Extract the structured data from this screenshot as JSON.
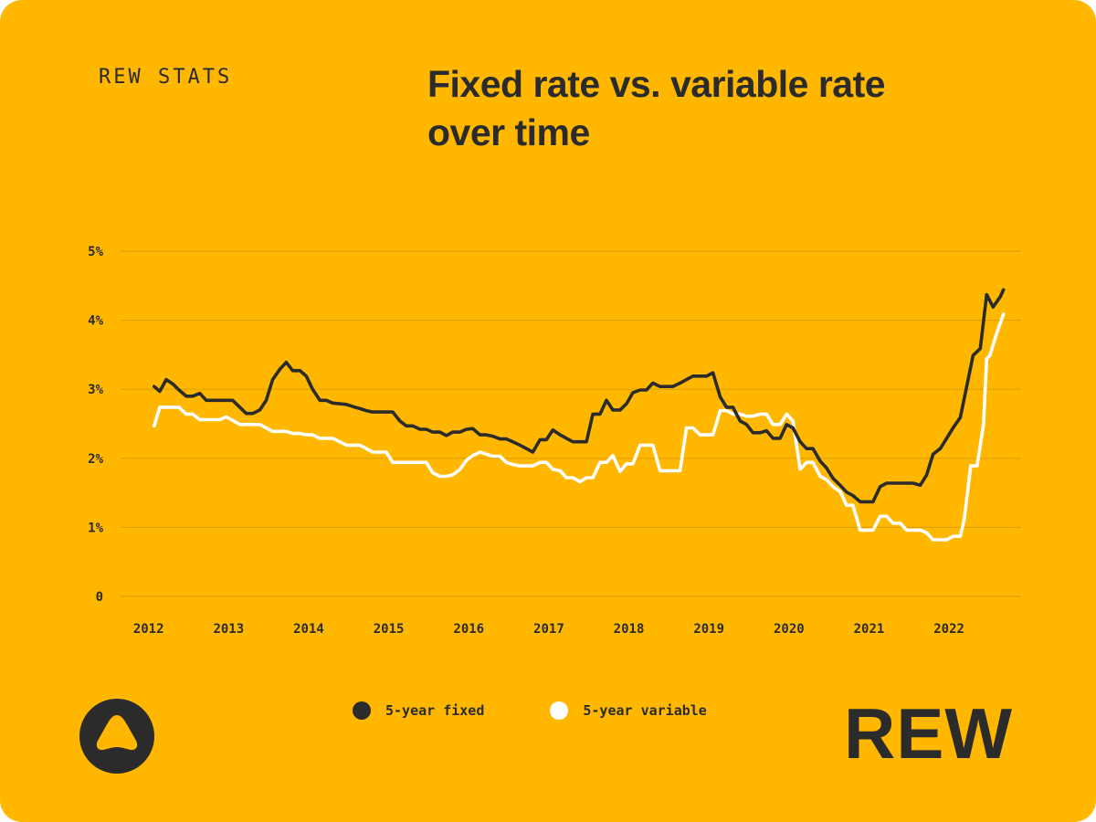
{
  "brand": {
    "eyebrow": "REW STATS",
    "wordmark": "REW"
  },
  "colors": {
    "background": "#FFB700",
    "fixed": "#2B2B2B",
    "variable": "#FFFFFF",
    "grid": "#E0A000",
    "text": "#2B2B2B"
  },
  "chart_data": {
    "type": "line",
    "title": "Fixed rate vs. variable rate over time",
    "xlabel": "",
    "ylabel": "",
    "xlim": [
      2011.7,
      2022.95
    ],
    "ylim": [
      0,
      5
    ],
    "x_ticks": [
      2012,
      2013,
      2014,
      2015,
      2016,
      2017,
      2018,
      2019,
      2020,
      2021,
      2022
    ],
    "y_ticks": [
      {
        "value": 0,
        "label": "0"
      },
      {
        "value": 1,
        "label": "1%"
      },
      {
        "value": 2,
        "label": "2%"
      },
      {
        "value": 3,
        "label": "3%"
      },
      {
        "value": 4,
        "label": "4%"
      },
      {
        "value": 5,
        "label": "5%"
      }
    ],
    "grid": "horizontal",
    "legend_position": "bottom-center",
    "series": [
      {
        "name": "5-year fixed",
        "color": "#2B2B2B",
        "points": [
          [
            2012.12,
            3.04
          ],
          [
            2012.19,
            2.97
          ],
          [
            2012.27,
            3.14
          ],
          [
            2012.35,
            3.08
          ],
          [
            2012.43,
            2.99
          ],
          [
            2012.52,
            2.9
          ],
          [
            2012.6,
            2.9
          ],
          [
            2012.69,
            2.94
          ],
          [
            2012.77,
            2.84
          ],
          [
            2012.85,
            2.84
          ],
          [
            2012.94,
            2.84
          ],
          [
            2013.02,
            2.84
          ],
          [
            2013.1,
            2.84
          ],
          [
            2013.19,
            2.74
          ],
          [
            2013.27,
            2.65
          ],
          [
            2013.35,
            2.65
          ],
          [
            2013.44,
            2.7
          ],
          [
            2013.52,
            2.84
          ],
          [
            2013.6,
            3.14
          ],
          [
            2013.69,
            3.29
          ],
          [
            2013.77,
            3.39
          ],
          [
            2013.85,
            3.27
          ],
          [
            2013.94,
            3.27
          ],
          [
            2014.02,
            3.19
          ],
          [
            2014.1,
            3.0
          ],
          [
            2014.19,
            2.84
          ],
          [
            2014.27,
            2.84
          ],
          [
            2014.35,
            2.8
          ],
          [
            2014.44,
            2.79
          ],
          [
            2014.52,
            2.78
          ],
          [
            2014.6,
            2.75
          ],
          [
            2014.69,
            2.72
          ],
          [
            2014.77,
            2.69
          ],
          [
            2014.85,
            2.67
          ],
          [
            2014.94,
            2.67
          ],
          [
            2015.02,
            2.67
          ],
          [
            2015.1,
            2.67
          ],
          [
            2015.19,
            2.54
          ],
          [
            2015.27,
            2.47
          ],
          [
            2015.35,
            2.47
          ],
          [
            2015.44,
            2.42
          ],
          [
            2015.52,
            2.42
          ],
          [
            2015.6,
            2.38
          ],
          [
            2015.69,
            2.38
          ],
          [
            2015.77,
            2.33
          ],
          [
            2015.85,
            2.38
          ],
          [
            2015.94,
            2.38
          ],
          [
            2016.02,
            2.42
          ],
          [
            2016.1,
            2.43
          ],
          [
            2016.19,
            2.34
          ],
          [
            2016.27,
            2.34
          ],
          [
            2016.35,
            2.32
          ],
          [
            2016.44,
            2.28
          ],
          [
            2016.52,
            2.28
          ],
          [
            2016.6,
            2.24
          ],
          [
            2016.69,
            2.19
          ],
          [
            2016.77,
            2.14
          ],
          [
            2016.85,
            2.09
          ],
          [
            2016.94,
            2.27
          ],
          [
            2017.02,
            2.27
          ],
          [
            2017.1,
            2.41
          ],
          [
            2017.19,
            2.34
          ],
          [
            2017.27,
            2.29
          ],
          [
            2017.35,
            2.24
          ],
          [
            2017.44,
            2.24
          ],
          [
            2017.52,
            2.24
          ],
          [
            2017.6,
            2.64
          ],
          [
            2017.69,
            2.64
          ],
          [
            2017.77,
            2.84
          ],
          [
            2017.85,
            2.7
          ],
          [
            2017.94,
            2.7
          ],
          [
            2018.02,
            2.79
          ],
          [
            2018.1,
            2.95
          ],
          [
            2018.19,
            2.99
          ],
          [
            2018.27,
            2.99
          ],
          [
            2018.35,
            3.09
          ],
          [
            2018.44,
            3.04
          ],
          [
            2018.52,
            3.04
          ],
          [
            2018.6,
            3.04
          ],
          [
            2018.69,
            3.09
          ],
          [
            2018.77,
            3.14
          ],
          [
            2018.85,
            3.19
          ],
          [
            2018.94,
            3.19
          ],
          [
            2019.02,
            3.19
          ],
          [
            2019.1,
            3.24
          ],
          [
            2019.19,
            2.89
          ],
          [
            2019.27,
            2.74
          ],
          [
            2019.35,
            2.74
          ],
          [
            2019.44,
            2.54
          ],
          [
            2019.52,
            2.49
          ],
          [
            2019.6,
            2.37
          ],
          [
            2019.69,
            2.37
          ],
          [
            2019.77,
            2.4
          ],
          [
            2019.85,
            2.29
          ],
          [
            2019.94,
            2.29
          ],
          [
            2020.02,
            2.49
          ],
          [
            2020.1,
            2.44
          ],
          [
            2020.19,
            2.24
          ],
          [
            2020.27,
            2.14
          ],
          [
            2020.35,
            2.14
          ],
          [
            2020.44,
            1.96
          ],
          [
            2020.52,
            1.86
          ],
          [
            2020.6,
            1.71
          ],
          [
            2020.69,
            1.61
          ],
          [
            2020.77,
            1.51
          ],
          [
            2020.85,
            1.46
          ],
          [
            2020.94,
            1.37
          ],
          [
            2021.02,
            1.37
          ],
          [
            2021.1,
            1.37
          ],
          [
            2021.19,
            1.59
          ],
          [
            2021.27,
            1.64
          ],
          [
            2021.35,
            1.64
          ],
          [
            2021.44,
            1.64
          ],
          [
            2021.52,
            1.64
          ],
          [
            2021.6,
            1.64
          ],
          [
            2021.69,
            1.61
          ],
          [
            2021.77,
            1.76
          ],
          [
            2021.85,
            2.06
          ],
          [
            2021.94,
            2.14
          ],
          [
            2022.02,
            2.29
          ],
          [
            2022.1,
            2.44
          ],
          [
            2022.19,
            2.59
          ],
          [
            2022.27,
            3.04
          ],
          [
            2022.35,
            3.49
          ],
          [
            2022.44,
            3.59
          ],
          [
            2022.52,
            4.37
          ],
          [
            2022.6,
            4.19
          ],
          [
            2022.69,
            4.34
          ],
          [
            2022.73,
            4.44
          ]
        ]
      },
      {
        "name": "5-year variable",
        "color": "#FFFFFF",
        "points": [
          [
            2012.12,
            2.47
          ],
          [
            2012.19,
            2.74
          ],
          [
            2012.27,
            2.74
          ],
          [
            2012.35,
            2.74
          ],
          [
            2012.43,
            2.74
          ],
          [
            2012.52,
            2.64
          ],
          [
            2012.6,
            2.64
          ],
          [
            2012.69,
            2.56
          ],
          [
            2012.77,
            2.56
          ],
          [
            2012.85,
            2.56
          ],
          [
            2012.94,
            2.56
          ],
          [
            2013.02,
            2.6
          ],
          [
            2013.1,
            2.55
          ],
          [
            2013.19,
            2.49
          ],
          [
            2013.27,
            2.49
          ],
          [
            2013.35,
            2.49
          ],
          [
            2013.44,
            2.49
          ],
          [
            2013.52,
            2.44
          ],
          [
            2013.6,
            2.39
          ],
          [
            2013.69,
            2.39
          ],
          [
            2013.77,
            2.39
          ],
          [
            2013.85,
            2.36
          ],
          [
            2013.94,
            2.36
          ],
          [
            2014.02,
            2.34
          ],
          [
            2014.1,
            2.34
          ],
          [
            2014.19,
            2.29
          ],
          [
            2014.27,
            2.29
          ],
          [
            2014.35,
            2.29
          ],
          [
            2014.44,
            2.24
          ],
          [
            2014.52,
            2.19
          ],
          [
            2014.6,
            2.19
          ],
          [
            2014.69,
            2.19
          ],
          [
            2014.77,
            2.14
          ],
          [
            2014.85,
            2.09
          ],
          [
            2014.94,
            2.09
          ],
          [
            2015.02,
            2.09
          ],
          [
            2015.1,
            1.94
          ],
          [
            2015.19,
            1.94
          ],
          [
            2015.27,
            1.94
          ],
          [
            2015.35,
            1.94
          ],
          [
            2015.44,
            1.94
          ],
          [
            2015.52,
            1.94
          ],
          [
            2015.6,
            1.79
          ],
          [
            2015.69,
            1.74
          ],
          [
            2015.77,
            1.74
          ],
          [
            2015.85,
            1.76
          ],
          [
            2015.94,
            1.84
          ],
          [
            2016.02,
            1.97
          ],
          [
            2016.1,
            2.04
          ],
          [
            2016.19,
            2.09
          ],
          [
            2016.27,
            2.06
          ],
          [
            2016.35,
            2.03
          ],
          [
            2016.44,
            2.03
          ],
          [
            2016.52,
            1.94
          ],
          [
            2016.6,
            1.91
          ],
          [
            2016.69,
            1.89
          ],
          [
            2016.77,
            1.89
          ],
          [
            2016.85,
            1.89
          ],
          [
            2016.94,
            1.94
          ],
          [
            2017.02,
            1.94
          ],
          [
            2017.1,
            1.84
          ],
          [
            2017.19,
            1.82
          ],
          [
            2017.27,
            1.72
          ],
          [
            2017.35,
            1.72
          ],
          [
            2017.44,
            1.66
          ],
          [
            2017.52,
            1.72
          ],
          [
            2017.6,
            1.72
          ],
          [
            2017.69,
            1.94
          ],
          [
            2017.77,
            1.94
          ],
          [
            2017.85,
            2.04
          ],
          [
            2017.94,
            1.81
          ],
          [
            2018.02,
            1.92
          ],
          [
            2018.1,
            1.92
          ],
          [
            2018.19,
            2.19
          ],
          [
            2018.27,
            2.19
          ],
          [
            2018.35,
            2.19
          ],
          [
            2018.44,
            1.82
          ],
          [
            2018.52,
            1.82
          ],
          [
            2018.6,
            1.82
          ],
          [
            2018.69,
            1.82
          ],
          [
            2018.77,
            2.44
          ],
          [
            2018.85,
            2.44
          ],
          [
            2018.94,
            2.34
          ],
          [
            2019.02,
            2.34
          ],
          [
            2019.1,
            2.34
          ],
          [
            2019.19,
            2.69
          ],
          [
            2019.27,
            2.69
          ],
          [
            2019.35,
            2.64
          ],
          [
            2019.44,
            2.64
          ],
          [
            2019.52,
            2.61
          ],
          [
            2019.6,
            2.61
          ],
          [
            2019.69,
            2.64
          ],
          [
            2019.77,
            2.64
          ],
          [
            2019.85,
            2.49
          ],
          [
            2019.94,
            2.49
          ],
          [
            2020.02,
            2.64
          ],
          [
            2020.1,
            2.54
          ],
          [
            2020.19,
            1.84
          ],
          [
            2020.27,
            1.94
          ],
          [
            2020.35,
            1.94
          ],
          [
            2020.44,
            1.74
          ],
          [
            2020.52,
            1.69
          ],
          [
            2020.6,
            1.59
          ],
          [
            2020.69,
            1.52
          ],
          [
            2020.77,
            1.32
          ],
          [
            2020.85,
            1.32
          ],
          [
            2020.94,
            0.96
          ],
          [
            2021.02,
            0.96
          ],
          [
            2021.1,
            0.96
          ],
          [
            2021.19,
            1.16
          ],
          [
            2021.27,
            1.16
          ],
          [
            2021.35,
            1.06
          ],
          [
            2021.44,
            1.06
          ],
          [
            2021.52,
            0.96
          ],
          [
            2021.6,
            0.96
          ],
          [
            2021.69,
            0.96
          ],
          [
            2021.77,
            0.92
          ],
          [
            2021.85,
            0.82
          ],
          [
            2021.94,
            0.82
          ],
          [
            2022.02,
            0.82
          ],
          [
            2022.1,
            0.87
          ],
          [
            2022.19,
            0.87
          ],
          [
            2022.24,
            1.12
          ],
          [
            2022.32,
            1.89
          ],
          [
            2022.4,
            1.89
          ],
          [
            2022.48,
            2.49
          ],
          [
            2022.52,
            3.44
          ],
          [
            2022.56,
            3.49
          ],
          [
            2022.64,
            3.79
          ],
          [
            2022.73,
            4.09
          ]
        ]
      }
    ]
  },
  "legend": [
    {
      "label": "5-year fixed"
    },
    {
      "label": "5-year variable"
    }
  ]
}
